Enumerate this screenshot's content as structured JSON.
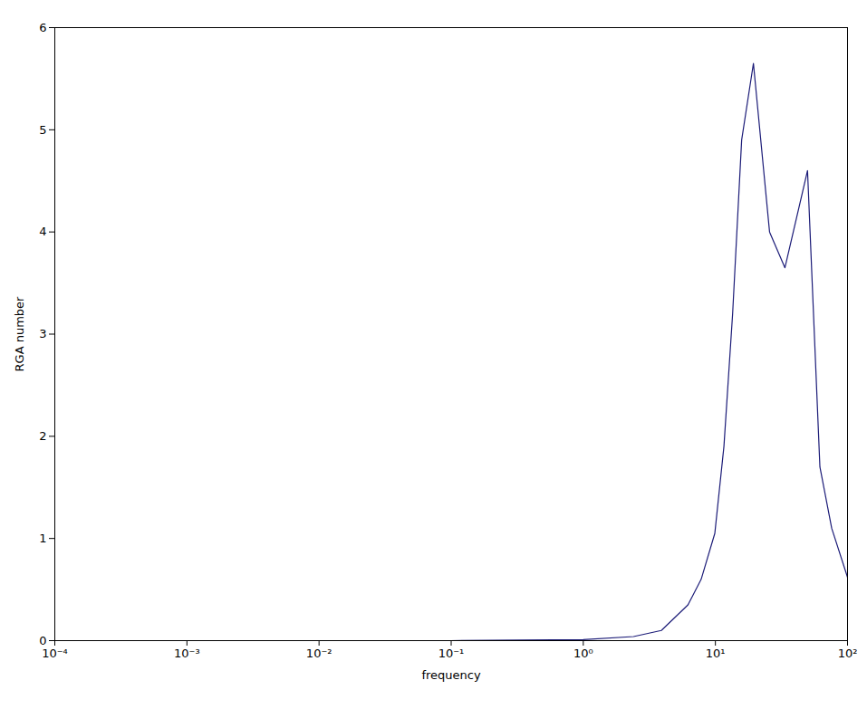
{
  "chart_data": {
    "type": "line",
    "x_label": "frequency",
    "y_label": "RGA number",
    "x": [
      0.0001,
      0.001,
      0.01,
      0.1,
      1,
      2.4,
      3.9,
      6.2,
      7.8,
      9.9,
      11.6,
      13.5,
      15.8,
      19.4,
      25.7,
      33.6,
      49.8,
      61.8,
      75.9,
      100
    ],
    "values": [
      0,
      0,
      0,
      0,
      0.01,
      0.04,
      0.1,
      0.35,
      0.6,
      1.05,
      1.9,
      3.2,
      4.9,
      5.65,
      4.0,
      3.65,
      4.6,
      1.7,
      1.1,
      0.62
    ],
    "color": "#1c1c78",
    "log": "x",
    "grid": false,
    "xlim": [
      0.0001,
      100
    ],
    "xticks": [
      {
        "value": 0.0001,
        "label": "10⁻⁴"
      },
      {
        "value": 0.001,
        "label": "10⁻³"
      },
      {
        "value": 0.01,
        "label": "10⁻²"
      },
      {
        "value": 0.1,
        "label": "10⁻¹"
      },
      {
        "value": 1,
        "label": "10⁰"
      },
      {
        "value": 10,
        "label": "10¹"
      },
      {
        "value": 100,
        "label": "10²"
      }
    ],
    "ylim": [
      0,
      6
    ],
    "yticks": [
      0,
      1,
      2,
      3,
      4,
      5,
      6
    ]
  }
}
